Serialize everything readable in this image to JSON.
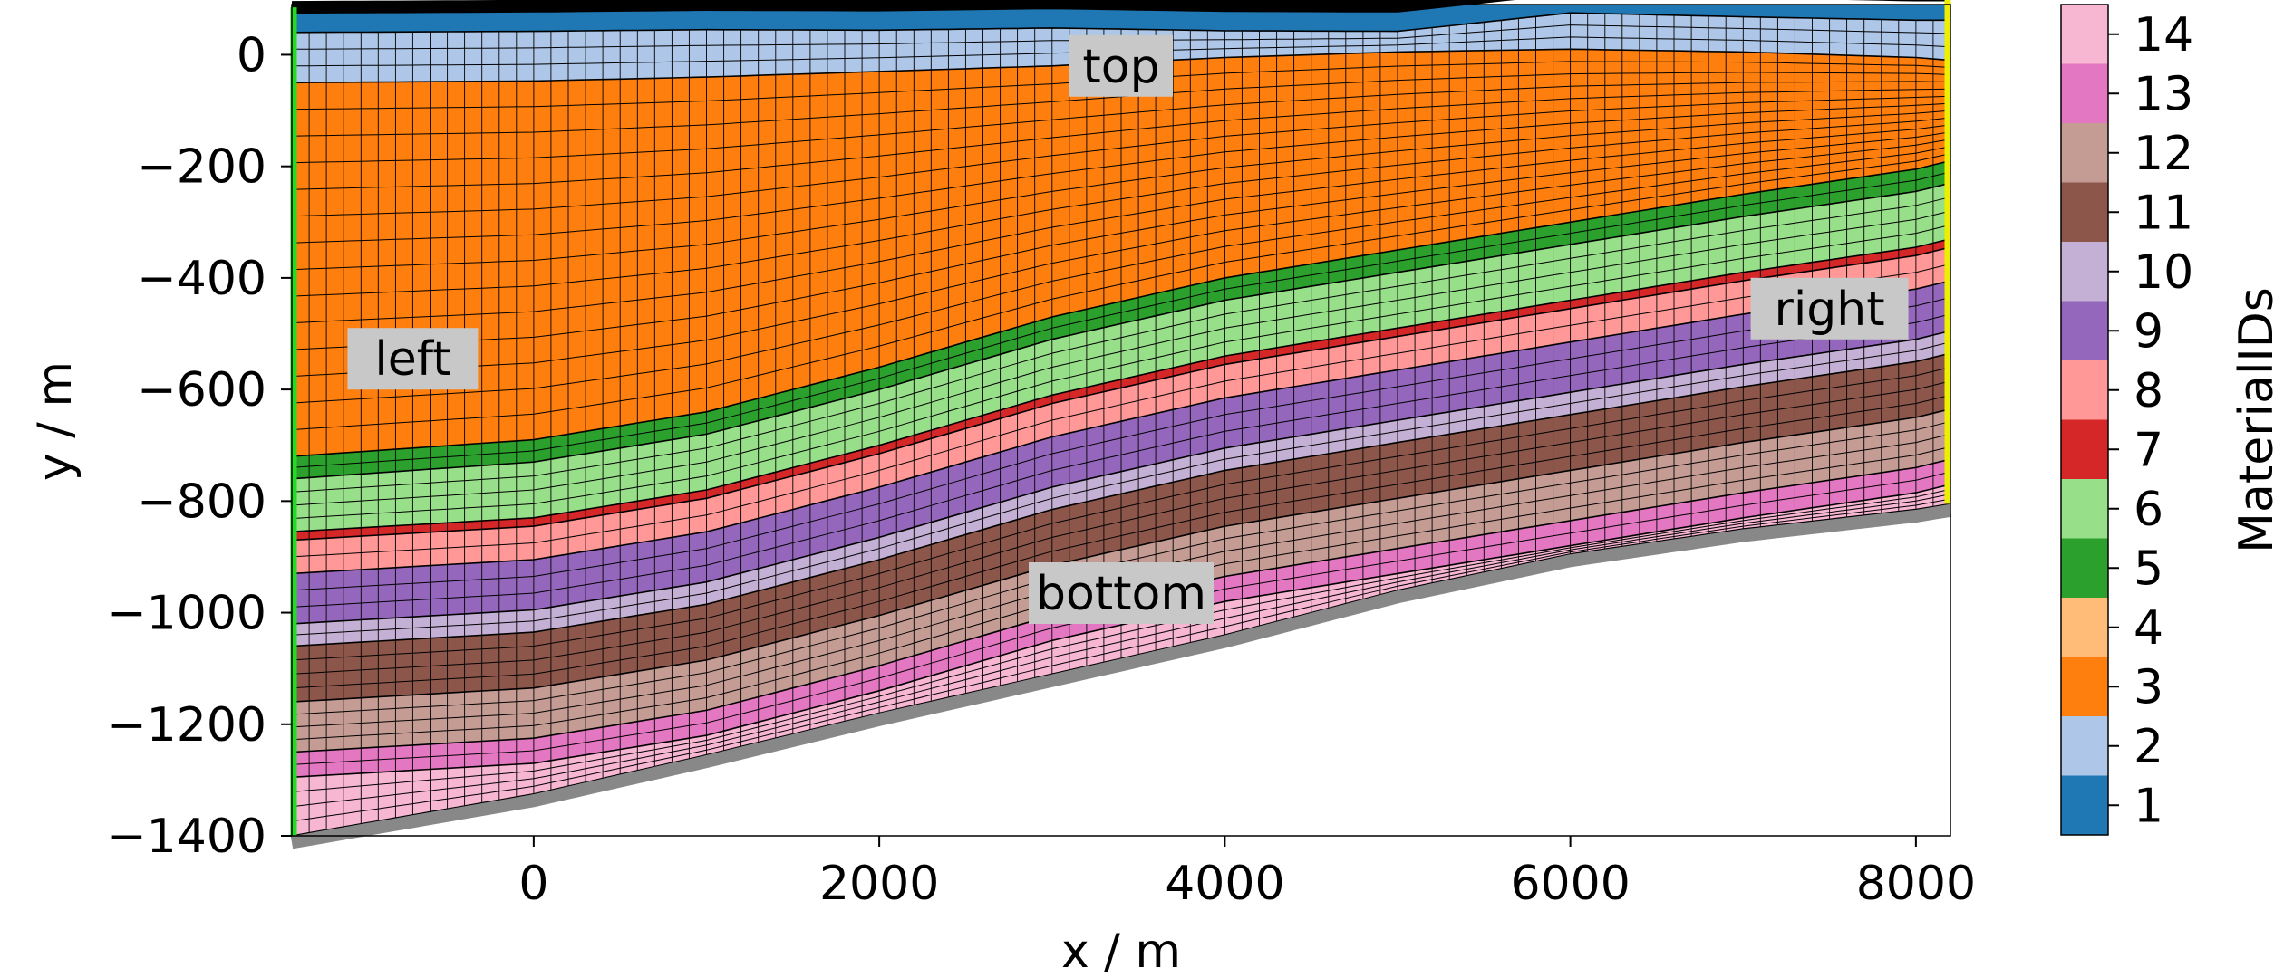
{
  "chart_data": {
    "type": "heatmap",
    "description_kind": "layered geological mesh colored by material id",
    "xlabel": "x / m",
    "ylabel": "y / m",
    "xlim": [
      -1400,
      8200
    ],
    "ylim": [
      -1400,
      90
    ],
    "x_ticks": [
      0,
      2000,
      4000,
      6000,
      8000
    ],
    "x_tick_labels": [
      "0",
      "2000",
      "4000",
      "6000",
      "8000"
    ],
    "y_ticks": [
      0,
      -200,
      -400,
      -600,
      -800,
      -1000,
      -1200,
      -1400
    ],
    "y_tick_labels": [
      "0",
      "−200",
      "−400",
      "−600",
      "−800",
      "−1000",
      "−1200",
      "−1400"
    ],
    "colorbar": {
      "label": "MaterialIDs",
      "entries": [
        {
          "id": 1,
          "label": "1",
          "color": "#1f77b4"
        },
        {
          "id": 2,
          "label": "2",
          "color": "#aec7e8"
        },
        {
          "id": 3,
          "label": "3",
          "color": "#ff7f0e"
        },
        {
          "id": 4,
          "label": "4",
          "color": "#ffbb78"
        },
        {
          "id": 5,
          "label": "5",
          "color": "#2ca02c"
        },
        {
          "id": 6,
          "label": "6",
          "color": "#98df8a"
        },
        {
          "id": 7,
          "label": "7",
          "color": "#d62728"
        },
        {
          "id": 8,
          "label": "8",
          "color": "#ff9896"
        },
        {
          "id": 9,
          "label": "9",
          "color": "#9467bd"
        },
        {
          "id": 10,
          "label": "10",
          "color": "#c5b0d5"
        },
        {
          "id": 11,
          "label": "11",
          "color": "#8c564b"
        },
        {
          "id": 12,
          "label": "12",
          "color": "#c49c94"
        },
        {
          "id": 13,
          "label": "13",
          "color": "#e377c2"
        },
        {
          "id": 14,
          "label": "14",
          "color": "#f7b6d2"
        }
      ]
    },
    "boundary_labels": [
      {
        "text": "top",
        "x": 3400,
        "y": -20
      },
      {
        "text": "left",
        "x": -700,
        "y": -545
      },
      {
        "text": "right",
        "x": 7500,
        "y": -455
      },
      {
        "text": "bottom",
        "x": 3400,
        "y": -965
      }
    ],
    "boundary_colors": {
      "top": "#000000",
      "left": "#22dd22",
      "right": "#eeee00",
      "bottom": "#888888"
    },
    "control_x": [
      -1400,
      0,
      1000,
      2000,
      3000,
      4000,
      5000,
      6000,
      7000,
      8000,
      8200
    ],
    "boundaries": [
      [
        40,
        42,
        45,
        44,
        48,
        43,
        42,
        75,
        68,
        62,
        62
      ],
      [
        -50,
        -47,
        -40,
        -30,
        -20,
        -5,
        5,
        10,
        5,
        -5,
        -10
      ],
      [
        -720,
        -690,
        -640,
        -560,
        -470,
        -400,
        -350,
        -300,
        -250,
        -205,
        -190
      ],
      [
        -760,
        -730,
        -680,
        -600,
        -510,
        -440,
        -390,
        -340,
        -290,
        -245,
        -230
      ],
      [
        -855,
        -830,
        -780,
        -700,
        -610,
        -540,
        -490,
        -440,
        -390,
        -345,
        -330
      ],
      [
        -870,
        -845,
        -795,
        -715,
        -625,
        -555,
        -505,
        -455,
        -405,
        -360,
        -345
      ],
      [
        -930,
        -905,
        -855,
        -775,
        -685,
        -615,
        -565,
        -515,
        -465,
        -420,
        -405
      ],
      [
        -1020,
        -995,
        -945,
        -865,
        -775,
        -705,
        -655,
        -605,
        -555,
        -510,
        -495
      ],
      [
        -1060,
        -1035,
        -985,
        -905,
        -815,
        -745,
        -695,
        -645,
        -595,
        -550,
        -535
      ],
      [
        -1160,
        -1135,
        -1085,
        -1005,
        -915,
        -845,
        -795,
        -745,
        -695,
        -650,
        -635
      ],
      [
        -1250,
        -1225,
        -1175,
        -1095,
        -1005,
        -935,
        -885,
        -835,
        -785,
        -740,
        -725
      ],
      [
        -1295,
        -1270,
        -1220,
        -1140,
        -1050,
        -980,
        -930,
        -880,
        -830,
        -785,
        -770
      ],
      [
        -1400,
        -1325,
        -1255,
        -1180,
        -1110,
        -1040,
        -960,
        -895,
        -850,
        -815,
        -805
      ]
    ],
    "layers": [
      {
        "material": 2,
        "divisions": 3
      },
      {
        "material": 3,
        "divisions": 14
      },
      {
        "material": 5,
        "divisions": 2
      },
      {
        "material": 6,
        "divisions": 4
      },
      {
        "material": 7,
        "divisions": 1
      },
      {
        "material": 8,
        "divisions": 2
      },
      {
        "material": 9,
        "divisions": 3
      },
      {
        "material": 10,
        "divisions": 2
      },
      {
        "material": 11,
        "divisions": 4
      },
      {
        "material": 12,
        "divisions": 4
      },
      {
        "material": 13,
        "divisions": 2
      },
      {
        "material": 14,
        "divisions": 4
      }
    ]
  }
}
